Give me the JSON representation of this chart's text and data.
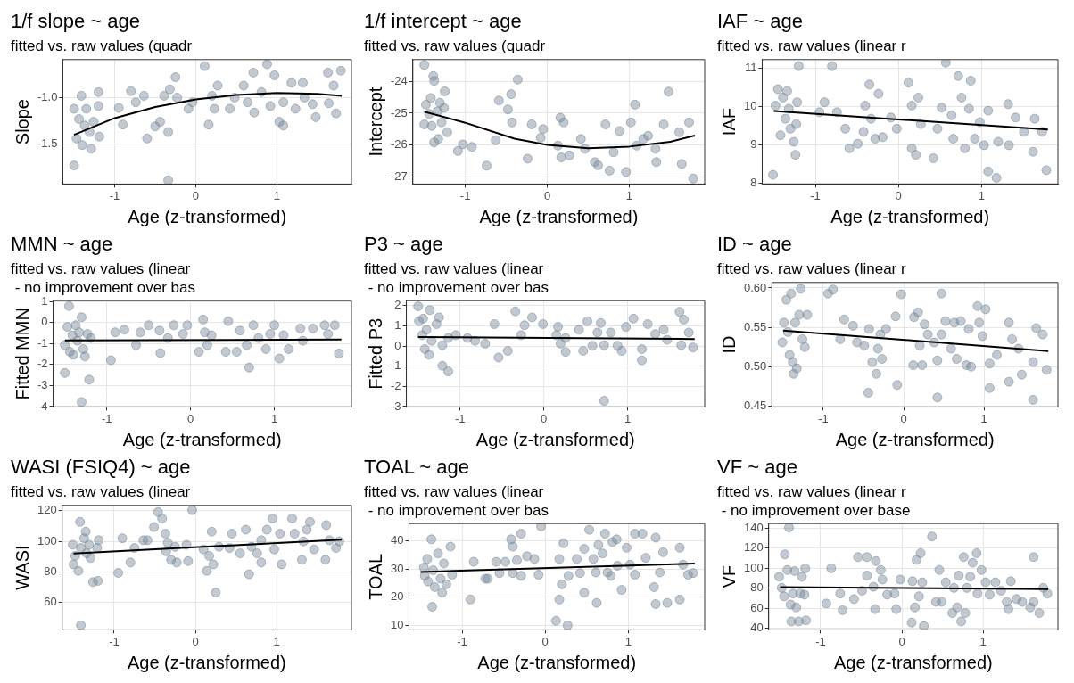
{
  "chart_data": [
    {
      "type": "scatter",
      "title": "1/f slope ~ age",
      "subtitle": "fitted vs. raw values (quadr",
      "xlabel": "Age (z-transformed)",
      "ylabel": "Slope",
      "xlim": [
        -1.64,
        1.92
      ],
      "xticks": [
        -1,
        0,
        1
      ],
      "ylim": [
        -1.93,
        -0.59
      ],
      "yticks": [
        {
          "value": -1.0,
          "label": "-1.0"
        },
        {
          "value": -1.5,
          "label": "-1.5"
        }
      ],
      "grid": true,
      "series": [
        {
          "type": "scatter",
          "marker": "circle",
          "color": "#778899",
          "x": [
            -1.5,
            -1.5,
            -1.47,
            -1.44,
            -1.41,
            -1.4,
            -1.37,
            -1.35,
            -1.31,
            -1.29,
            -1.26,
            -1.2,
            -1.2,
            -1.19,
            -0.95,
            -0.9,
            -0.8,
            -0.74,
            -0.64,
            -0.6,
            -0.5,
            -0.44,
            -0.39,
            -0.34,
            -0.34,
            -0.32,
            -0.25,
            -0.23,
            -0.09,
            -0.04,
            0.11,
            0.16,
            0.2,
            0.23,
            0.27,
            0.42,
            0.48,
            0.59,
            0.64,
            0.71,
            0.72,
            0.81,
            0.88,
            0.92,
            0.97,
            1.03,
            1.08,
            1.08,
            1.18,
            1.23,
            1.32,
            1.34,
            1.44,
            1.48,
            1.63,
            1.64,
            1.7,
            1.73,
            1.79
          ],
          "values": [
            -1.73,
            -1.12,
            -1.44,
            -1.23,
            -0.98,
            -1.51,
            -1.3,
            -1.12,
            -1.37,
            -1.55,
            -1.26,
            -0.94,
            -1.09,
            -1.42,
            -1.11,
            -1.29,
            -0.93,
            -1.05,
            -0.98,
            -1.44,
            -1.31,
            -1.26,
            -0.98,
            -1.89,
            -1.37,
            -0.91,
            -0.78,
            -1.0,
            -1.12,
            -1.05,
            -0.66,
            -1.29,
            -0.98,
            -1.12,
            -0.87,
            -1.12,
            -1.0,
            -0.87,
            -1.05,
            -0.73,
            -1.16,
            -0.94,
            -0.64,
            -1.09,
            -0.76,
            -1.26,
            -1.3,
            -1.05,
            -0.84,
            -1.12,
            -0.84,
            -1.0,
            -1.07,
            -1.21,
            -0.73,
            -1.06,
            -0.87,
            -1.17,
            -0.71
          ]
        },
        {
          "type": "line",
          "marker": "none",
          "color": "#000000",
          "x": [
            -1.5,
            -1.0,
            -0.5,
            0,
            0.5,
            1.0,
            1.5,
            1.8
          ],
          "values": [
            -1.4,
            -1.22,
            -1.1,
            -1.02,
            -0.97,
            -0.95,
            -0.96,
            -0.98
          ]
        }
      ]
    },
    {
      "type": "scatter",
      "title": "1/f intercept ~ age",
      "subtitle": "fitted vs. raw values (quadr",
      "xlabel": "Age (z-transformed)",
      "ylabel": "Intercept",
      "xlim": [
        -1.64,
        1.92
      ],
      "xticks": [
        -1,
        0,
        1
      ],
      "ylim": [
        -27.23,
        -23.31
      ],
      "yticks": [
        -24,
        -25,
        -26,
        -27
      ],
      "grid": true,
      "series": [
        {
          "type": "scatter",
          "marker": "circle",
          "color": "#778899",
          "x": [
            -1.5,
            -1.5,
            -1.48,
            -1.44,
            -1.42,
            -1.41,
            -1.38,
            -1.38,
            -1.34,
            -1.33,
            -1.31,
            -1.39,
            -1.29,
            -1.26,
            -1.22,
            -1.25,
            -1.09,
            -1.03,
            -0.92,
            -0.74,
            -0.63,
            -0.59,
            -0.48,
            -0.44,
            -0.43,
            -0.36,
            -0.19,
            -0.05,
            -0.08,
            -0.24,
            0.13,
            0.16,
            0.2,
            0.17,
            0.27,
            0.41,
            0.46,
            0.58,
            0.62,
            0.71,
            0.76,
            0.81,
            0.88,
            0.96,
            1.02,
            1.07,
            1.09,
            1.17,
            1.23,
            1.32,
            1.33,
            1.42,
            1.48,
            1.61,
            1.64,
            1.73,
            1.78
          ],
          "values": [
            -23.48,
            -25.35,
            -24.73,
            -25.02,
            -24.52,
            -25.4,
            -23.98,
            -25.92,
            -24.94,
            -25.81,
            -24.67,
            -23.83,
            -25.29,
            -24.83,
            -25.6,
            -24.31,
            -26.19,
            -25.98,
            -26.06,
            -26.65,
            -25.85,
            -24.6,
            -24.88,
            -24.4,
            -25.29,
            -23.94,
            -25.35,
            -25.5,
            -25.77,
            -26.43,
            -26.02,
            -25.14,
            -25.29,
            -26.39,
            -26.33,
            -25.81,
            -26.12,
            -26.54,
            -26.64,
            -25.35,
            -26.81,
            -26.23,
            -25.56,
            -26.85,
            -25.29,
            -24.73,
            -26.02,
            -25.81,
            -25.71,
            -26.12,
            -26.54,
            -25.35,
            -24.32,
            -25.6,
            -26.6,
            -25.29,
            -27.06
          ]
        },
        {
          "type": "line",
          "marker": "none",
          "color": "#000000",
          "x": [
            -1.5,
            -1.0,
            -0.4,
            0,
            0.5,
            1.0,
            1.5,
            1.8
          ],
          "values": [
            -24.95,
            -25.3,
            -25.8,
            -26.0,
            -26.1,
            -26.05,
            -25.9,
            -25.7
          ]
        }
      ]
    },
    {
      "type": "scatter",
      "title": "IAF ~ age",
      "subtitle": "fitted vs. raw values (linear r",
      "xlabel": "Age (z-transformed)",
      "ylabel": "IAF",
      "xlim": [
        -1.64,
        1.92
      ],
      "xticks": [
        -1,
        0,
        1
      ],
      "ylim": [
        7.98,
        11.22
      ],
      "yticks": [
        8,
        9,
        10,
        11
      ],
      "grid": true,
      "series": [
        {
          "type": "scatter",
          "marker": "circle",
          "color": "#778899",
          "x": [
            -1.51,
            -1.48,
            -1.45,
            -1.42,
            -1.39,
            -1.36,
            -1.34,
            -1.32,
            -1.3,
            -1.26,
            -1.24,
            -1.22,
            -1.2,
            -1.23,
            -0.95,
            -0.89,
            -0.8,
            -0.74,
            -0.64,
            -0.59,
            -0.49,
            -0.42,
            -0.4,
            -0.35,
            -0.33,
            -0.28,
            -0.24,
            -0.19,
            -0.09,
            -0.02,
            0.12,
            0.16,
            0.16,
            0.21,
            0.24,
            0.27,
            0.42,
            0.47,
            0.52,
            0.57,
            0.64,
            0.66,
            0.72,
            0.76,
            0.8,
            0.85,
            0.87,
            0.92,
            0.98,
            1.03,
            1.08,
            1.08,
            1.18,
            1.2,
            1.32,
            1.33,
            1.41,
            1.51,
            1.62,
            1.64,
            1.73,
            1.78
          ],
          "values": [
            8.22,
            10.02,
            10.45,
            9.25,
            10.23,
            9.68,
            10.4,
            9.94,
            9.42,
            9.08,
            8.74,
            10.11,
            11.05,
            9.54,
            9.85,
            10.11,
            11.05,
            9.85,
            9.42,
            8.91,
            9.03,
            9.34,
            10.02,
            10.57,
            9.68,
            9.16,
            10.33,
            9.2,
            9.71,
            9.42,
            10.62,
            10.02,
            8.91,
            8.74,
            10.23,
            9.54,
            8.65,
            9.42,
            9.97,
            11.14,
            9.77,
            9.16,
            10.79,
            10.23,
            8.91,
            9.94,
            10.67,
            9.16,
            9.59,
            8.99,
            8.31,
            9.89,
            8.14,
            9.08,
            10.06,
            8.99,
            9.71,
            9.34,
            8.82,
            9.68,
            9.34,
            8.34
          ]
        },
        {
          "type": "line",
          "marker": "none",
          "color": "#000000",
          "x": [
            -1.5,
            1.8
          ],
          "values": [
            9.88,
            9.4
          ]
        }
      ]
    },
    {
      "type": "scatter",
      "title": "MMN ~ age",
      "subtitle": "fitted vs. raw values (linear\n - no improvement over bas",
      "xlabel": "Age (z-transformed)",
      "ylabel": "Fitted MMN",
      "xlim": [
        -1.64,
        1.92
      ],
      "xticks": [
        -1,
        0,
        1
      ],
      "ylim": [
        -4.02,
        1.05
      ],
      "yticks": [
        1,
        0,
        -1,
        -2,
        -3,
        -4
      ],
      "grid": true,
      "series": [
        {
          "type": "scatter",
          "marker": "circle",
          "color": "#778899",
          "x": [
            -1.5,
            -1.5,
            -1.47,
            -1.45,
            -1.44,
            -1.41,
            -1.4,
            -1.37,
            -1.35,
            -1.33,
            -1.3,
            -1.3,
            -1.28,
            -1.26,
            -1.23,
            -1.21,
            -1.19,
            -0.95,
            -0.9,
            -0.79,
            -0.65,
            -0.6,
            -0.5,
            -0.37,
            -0.36,
            -0.27,
            -0.2,
            -0.09,
            -0.04,
            0.15,
            0.1,
            0.17,
            0.2,
            0.25,
            0.45,
            0.42,
            0.55,
            0.59,
            0.67,
            0.7,
            0.75,
            0.81,
            0.9,
            0.95,
            1.0,
            1.06,
            1.11,
            1.17,
            1.31,
            1.34,
            1.46,
            1.6,
            1.64,
            1.72,
            1.77
          ],
          "values": [
            -2.4,
            -1.07,
            -0.2,
            0.79,
            -1.39,
            -0.6,
            -1.53,
            -0.12,
            -0.86,
            -0.46,
            -3.79,
            0.26,
            -1.26,
            -1.61,
            -0.54,
            -2.72,
            -0.73,
            -1.79,
            -0.46,
            -0.33,
            -1.07,
            -0.46,
            -0.12,
            -0.38,
            -1.45,
            -0.73,
            -0.12,
            -0.54,
            -0.12,
            0.15,
            -1.39,
            -0.46,
            -1.07,
            -0.6,
            0.07,
            -1.39,
            -1.39,
            -0.38,
            -1.07,
            -2.14,
            -0.12,
            -0.73,
            -1.26,
            -0.54,
            -0.12,
            -1.71,
            -0.6,
            -1.26,
            -0.28,
            -0.86,
            -0.28,
            -0.12,
            -0.54,
            -0.12,
            -1.47
          ]
        },
        {
          "type": "line",
          "marker": "none",
          "color": "#000000",
          "x": [
            -1.5,
            1.8
          ],
          "values": [
            -0.85,
            -0.8
          ]
        }
      ]
    },
    {
      "type": "scatter",
      "title": "P3 ~ age",
      "subtitle": "fitted vs. raw values (linear\n - no improvement over bas",
      "xlabel": "Age (z-transformed)",
      "ylabel": "Fitted P3",
      "xlim": [
        -1.64,
        1.92
      ],
      "xticks": [
        -1,
        0,
        1
      ],
      "ylim": [
        -3.02,
        2.25
      ],
      "yticks": [
        2,
        1,
        0,
        -1,
        -2,
        -3
      ],
      "grid": true,
      "series": [
        {
          "type": "scatter",
          "marker": "circle",
          "color": "#778899",
          "x": [
            -1.5,
            -1.49,
            -1.45,
            -1.44,
            -1.42,
            -1.4,
            -1.37,
            -1.36,
            -1.34,
            -1.28,
            -1.25,
            -1.21,
            -1.14,
            -1.21,
            -1.14,
            -1.05,
            -0.91,
            -0.82,
            -0.7,
            -0.59,
            -0.54,
            -0.43,
            -0.34,
            -0.27,
            -0.23,
            -0.14,
            -0.01,
            0.15,
            0.17,
            0.2,
            0.26,
            0.26,
            0.42,
            0.47,
            0.52,
            0.58,
            0.64,
            0.68,
            0.72,
            0.72,
            0.8,
            0.88,
            0.93,
            0.98,
            1.07,
            1.17,
            1.17,
            1.24,
            1.33,
            1.43,
            1.47,
            1.62,
            1.67,
            1.73,
            1.64,
            1.78
          ],
          "values": [
            1.97,
            1.23,
            0.54,
            1.36,
            -0.15,
            0.81,
            -0.43,
            1.78,
            0.26,
            1.09,
            1.42,
            0.04,
            0.4,
            -0.98,
            -1.26,
            0.54,
            0.4,
            0.26,
            0.12,
            1.09,
            -0.57,
            -0.24,
            1.72,
            0.54,
            1.03,
            1.42,
            1.09,
            0.54,
            0.95,
            0.12,
            -0.29,
            0.4,
            0.81,
            -0.24,
            1.23,
            0.02,
            0.67,
            1.14,
            0.04,
            -2.72,
            0.67,
            0.02,
            -0.24,
            0.95,
            1.36,
            -0.15,
            -0.71,
            1.09,
            0.59,
            0.81,
            0.31,
            1.7,
            1.31,
            0.67,
            0.04,
            -0.07
          ]
        },
        {
          "type": "line",
          "marker": "none",
          "color": "#000000",
          "x": [
            -1.5,
            1.8
          ],
          "values": [
            0.45,
            0.35
          ]
        }
      ]
    },
    {
      "type": "scatter",
      "title": "ID ~ age",
      "subtitle": "fitted vs. raw values (linear r",
      "xlabel": "Age (z-transformed)",
      "ylabel": "ID",
      "xlim": [
        -1.64,
        1.92
      ],
      "xticks": [
        -1,
        0,
        1
      ],
      "ylim": [
        0.449,
        0.607
      ],
      "yticks": [
        {
          "value": 0.6,
          "label": "0.60"
        },
        {
          "value": 0.55,
          "label": "0.55"
        },
        {
          "value": 0.5,
          "label": "0.50"
        },
        {
          "value": 0.45,
          "label": "0.45"
        }
      ],
      "grid": true,
      "series": [
        {
          "type": "scatter",
          "marker": "circle",
          "color": "#778899",
          "x": [
            -1.51,
            -1.49,
            -1.46,
            -1.44,
            -1.42,
            -1.4,
            -1.38,
            -1.37,
            -1.35,
            -1.33,
            -1.3,
            -1.28,
            -1.26,
            -1.23,
            -1.2,
            -0.94,
            -0.88,
            -0.79,
            -0.74,
            -0.63,
            -0.58,
            -0.49,
            -0.44,
            -0.43,
            -0.39,
            -0.34,
            -0.32,
            -0.29,
            -0.27,
            -0.22,
            -0.1,
            -0.08,
            -0.03,
            0.12,
            0.13,
            0.18,
            0.2,
            0.23,
            0.26,
            0.3,
            0.38,
            0.42,
            0.42,
            0.47,
            0.47,
            0.52,
            0.59,
            0.63,
            0.66,
            0.71,
            0.78,
            0.81,
            0.84,
            0.92,
            0.94,
            0.98,
            1.02,
            1.07,
            1.07,
            1.16,
            1.31,
            1.31,
            1.35,
            1.43,
            1.47,
            1.61,
            1.61,
            1.65,
            1.73,
            1.78
          ],
          "values": [
            0.531,
            0.556,
            0.585,
            0.544,
            0.515,
            0.593,
            0.506,
            0.491,
            0.556,
            0.498,
            0.566,
            0.599,
            0.535,
            0.525,
            0.566,
            0.593,
            0.598,
            0.535,
            0.56,
            0.552,
            0.531,
            0.527,
            0.467,
            0.548,
            0.506,
            0.491,
            0.523,
            0.541,
            0.51,
            0.548,
            0.564,
            0.477,
            0.592,
            0.502,
            0.563,
            0.569,
            0.527,
            0.502,
            0.554,
            0.541,
            0.531,
            0.508,
            0.461,
            0.593,
            0.541,
            0.558,
            0.523,
            0.556,
            0.51,
            0.558,
            0.502,
            0.548,
            0.5,
            0.577,
            0.556,
            0.539,
            0.573,
            0.504,
            0.473,
            0.515,
            0.556,
            0.481,
            0.535,
            0.523,
            0.49,
            0.506,
            0.458,
            0.549,
            0.541,
            0.496
          ]
        },
        {
          "type": "line",
          "marker": "none",
          "color": "#000000",
          "x": [
            -1.5,
            1.8
          ],
          "values": [
            0.546,
            0.52
          ]
        }
      ]
    },
    {
      "type": "scatter",
      "title": "WASI (FSIQ4) ~ age",
      "subtitle": "fitted vs. raw values (linear",
      "xlabel": "Age (z-transformed)",
      "ylabel": "WASI",
      "xlim": [
        -1.64,
        1.92
      ],
      "xticks": [
        -1,
        0,
        1
      ],
      "ylim": [
        42,
        123.5
      ],
      "yticks": [
        120,
        100,
        80,
        60
      ],
      "grid": true,
      "series": [
        {
          "type": "scatter",
          "marker": "circle",
          "color": "#778899",
          "x": [
            -1.51,
            -1.5,
            -1.48,
            -1.44,
            -1.42,
            -1.41,
            -1.41,
            -1.37,
            -1.35,
            -1.34,
            -1.31,
            -1.29,
            -1.26,
            -1.21,
            -1.2,
            -1.19,
            -0.95,
            -0.9,
            -0.8,
            -0.75,
            -0.64,
            -0.59,
            -0.51,
            -0.46,
            -0.41,
            -0.37,
            -0.36,
            -0.34,
            -0.3,
            -0.25,
            -0.23,
            -0.11,
            -0.09,
            -0.04,
            0.1,
            0.14,
            0.17,
            0.2,
            0.22,
            0.25,
            0.29,
            0.42,
            0.45,
            0.55,
            0.62,
            0.66,
            0.69,
            0.76,
            0.81,
            0.81,
            0.88,
            0.95,
            0.97,
            1.04,
            1.06,
            1.19,
            1.22,
            1.31,
            1.33,
            1.37,
            1.41,
            1.46,
            1.6,
            1.61,
            1.65,
            1.73,
            1.77
          ],
          "values": [
            97.7,
            84.9,
            90.4,
            80.6,
            112.7,
            95.6,
            45,
            102,
            106.3,
            92.1,
            97.7,
            89.1,
            73.3,
            95.6,
            74.1,
            100.7,
            79.3,
            102,
            86.1,
            95.6,
            100.7,
            100.7,
            109.3,
            119.1,
            114.9,
            105,
            93.4,
            99,
            87.9,
            96.4,
            86.1,
            97.7,
            87,
            120.4,
            94.7,
            80.6,
            90.4,
            106.3,
            84.9,
            66.4,
            96.4,
            95.6,
            105,
            92.1,
            107.6,
            78.4,
            96.4,
            92.1,
            100.7,
            86.1,
            107.6,
            114.9,
            94.7,
            105,
            84.9,
            114.9,
            105,
            87.9,
            99.9,
            107.6,
            112.7,
            94.7,
            87.9,
            110.6,
            100.7,
            95.6,
            99.9
          ]
        },
        {
          "type": "line",
          "marker": "none",
          "color": "#000000",
          "x": [
            -1.5,
            1.8
          ],
          "values": [
            92,
            101
          ]
        }
      ]
    },
    {
      "type": "scatter",
      "title": "TOAL ~ age",
      "subtitle": "fitted vs. raw values (linear\n - no improvement over bas",
      "xlabel": "Age (z-transformed)",
      "ylabel": "TOAL",
      "xlim": [
        -1.64,
        1.92
      ],
      "xticks": [
        -1,
        0,
        1
      ],
      "ylim": [
        8.4,
        46.2
      ],
      "yticks": [
        40,
        30,
        20,
        10
      ],
      "grid": true,
      "series": [
        {
          "type": "scatter",
          "marker": "circle",
          "color": "#778899",
          "x": [
            -1.46,
            -1.45,
            -1.42,
            -1.41,
            -1.37,
            -1.36,
            -1.35,
            -1.33,
            -1.29,
            -1.26,
            -1.24,
            -1.22,
            -1.19,
            -1.14,
            -1.12,
            -0.9,
            -0.86,
            -0.72,
            -0.69,
            -0.59,
            -0.55,
            -0.48,
            -0.41,
            -0.39,
            -0.39,
            -0.34,
            -0.29,
            -0.29,
            -0.22,
            -0.05,
            -0.13,
            -0.08,
            0.13,
            0.17,
            0.17,
            0.22,
            0.2,
            0.27,
            0.28,
            0.38,
            0.42,
            0.47,
            0.47,
            0.53,
            0.58,
            0.61,
            0.62,
            0.64,
            0.69,
            0.72,
            0.75,
            0.79,
            0.81,
            0.86,
            0.87,
            0.92,
            0.98,
            1.02,
            1.08,
            1.08,
            1.17,
            1.21,
            1.31,
            1.33,
            1.33,
            1.38,
            1.42,
            1.47,
            1.62,
            1.62,
            1.66,
            1.72,
            1.78
          ],
          "values": [
            30.6,
            27.6,
            33.6,
            25.6,
            40.6,
            16.6,
            29.6,
            23.6,
            35.6,
            26.6,
            21.6,
            32,
            24.6,
            38,
            28,
            19.2,
            32.6,
            26.6,
            26.6,
            32.6,
            28.6,
            32.6,
            40.6,
            38,
            28.6,
            33.2,
            27.6,
            42.6,
            34.6,
            45.2,
            33.6,
            28,
            11.6,
            33.6,
            19.2,
            39.2,
            24.6,
            10,
            27.6,
            33.6,
            28.6,
            21.6,
            37.2,
            44,
            33.6,
            28.8,
            18,
            38.6,
            35.6,
            42.6,
            28.8,
            27.6,
            39.6,
            40.6,
            31.2,
            22.6,
            37.6,
            31.6,
            28,
            42.6,
            42.6,
            34,
            23.6,
            41.2,
            17.6,
            28.8,
            36,
            18,
            37.6,
            19.2,
            31.6,
            28,
            28.6
          ]
        },
        {
          "type": "line",
          "marker": "none",
          "color": "#000000",
          "x": [
            -1.5,
            1.8
          ],
          "values": [
            29,
            32
          ]
        }
      ]
    },
    {
      "type": "scatter",
      "title": "VF ~ age",
      "subtitle": "fitted vs. raw values (linear r\n - no improvement over base",
      "xlabel": "Age (z-transformed)",
      "ylabel": "VF",
      "xlim": [
        -1.64,
        1.92
      ],
      "xticks": [
        -1,
        0,
        1
      ],
      "ylim": [
        38.3,
        144.5
      ],
      "yticks": [
        140,
        120,
        100,
        80,
        60,
        40
      ],
      "grid": true,
      "series": [
        {
          "type": "scatter",
          "marker": "circle",
          "color": "#778899",
          "x": [
            -1.51,
            -1.48,
            -1.45,
            -1.44,
            -1.41,
            -1.39,
            -1.37,
            -1.36,
            -1.34,
            -1.32,
            -1.3,
            -1.27,
            -1.25,
            -1.23,
            -1.19,
            -1.18,
            -1.2,
            -0.93,
            -0.87,
            -0.76,
            -0.73,
            -0.59,
            -0.54,
            -0.49,
            -0.43,
            -0.43,
            -0.35,
            -0.33,
            -0.32,
            -0.26,
            -0.24,
            -0.18,
            -0.09,
            -0.07,
            -0.02,
            0.12,
            0.13,
            0.16,
            0.18,
            0.21,
            0.23,
            0.25,
            0.27,
            0.37,
            0.42,
            0.46,
            0.49,
            0.54,
            0.64,
            0.62,
            0.68,
            0.7,
            0.73,
            0.76,
            0.78,
            0.8,
            0.84,
            0.87,
            0.92,
            0.93,
            0.98,
            1.03,
            1.08,
            1.15,
            1.22,
            1.29,
            1.31,
            1.34,
            1.41,
            1.48,
            1.58,
            1.62,
            1.62,
            1.69,
            1.74,
            1.79
          ],
          "values": [
            91.4,
            80.2,
            71.8,
            113.7,
            98.1,
            140.6,
            63.5,
            46.7,
            74.6,
            97,
            60.7,
            46.7,
            74.6,
            91.4,
            99.8,
            47.8,
            73.5,
            64.6,
            99.8,
            74.6,
            57.9,
            69.1,
            111,
            77.4,
            92.5,
            111,
            81.3,
            59,
            107,
            98.1,
            88.6,
            73.5,
            74.6,
            59,
            88.6,
            45.6,
            86.9,
            60.7,
            108.2,
            71.8,
            114.9,
            85.8,
            42.2,
            131.6,
            66.3,
            98.1,
            66.3,
            85.8,
            80.2,
            55.1,
            60.7,
            92.5,
            46.7,
            111,
            55.1,
            80.2,
            91.4,
            105.4,
            114.9,
            74.6,
            98.1,
            85.8,
            73.5,
            85.8,
            77.4,
            66.3,
            59,
            86.9,
            69.1,
            66.3,
            60.7,
            111,
            66.3,
            55.1,
            80.2,
            74.6
          ]
        },
        {
          "type": "line",
          "marker": "none",
          "color": "#000000",
          "x": [
            -1.5,
            1.8
          ],
          "values": [
            81,
            79
          ]
        }
      ]
    }
  ]
}
